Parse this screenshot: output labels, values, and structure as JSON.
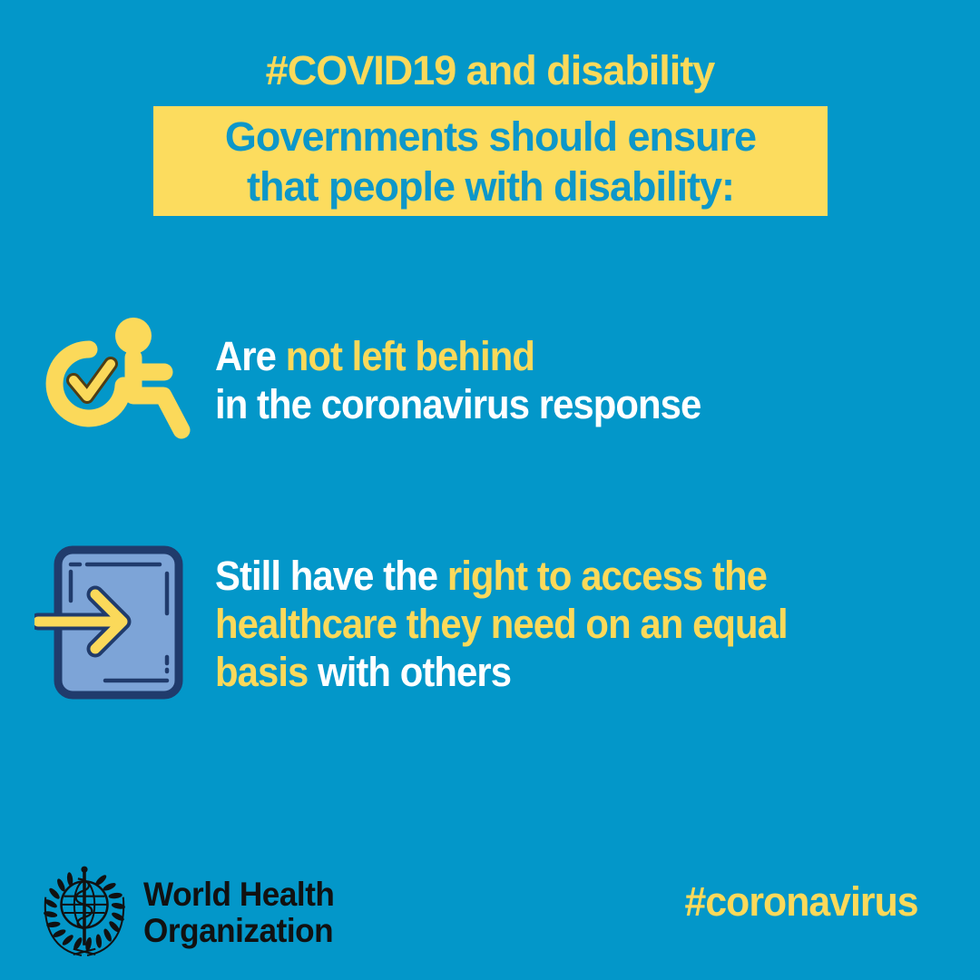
{
  "colors": {
    "background": "#0397c9",
    "yellow": "#fbd95a",
    "banner_fill": "#fcdc5e",
    "banner_text": "#0d97c9",
    "white": "#ffffff",
    "navy": "#203b6c",
    "door_fill": "#7da4d7",
    "check_outline": "#4f3d14",
    "black": "#111111"
  },
  "header": {
    "hashtag": "#COVID19 and disability",
    "banner_lines": [
      "Governments should ensure",
      "that people with disability:"
    ]
  },
  "items": [
    {
      "icon": "wheelchair-check-icon",
      "segments": [
        {
          "text": "Are ",
          "color": "white"
        },
        {
          "text": "not left behind",
          "color": "yellow"
        },
        {
          "text": "\nin the coronavirus response",
          "color": "white"
        }
      ]
    },
    {
      "icon": "door-entry-arrow-icon",
      "segments": [
        {
          "text": "Still have the ",
          "color": "white"
        },
        {
          "text": "right to access the\nhealthcare they need on an equal\nbasis",
          "color": "yellow"
        },
        {
          "text": " with others",
          "color": "white"
        }
      ]
    }
  ],
  "footer": {
    "who_logo": "who-emblem-icon",
    "org_name_lines": [
      "World Health",
      "Organization"
    ],
    "hashtag": "#coronavirus"
  }
}
